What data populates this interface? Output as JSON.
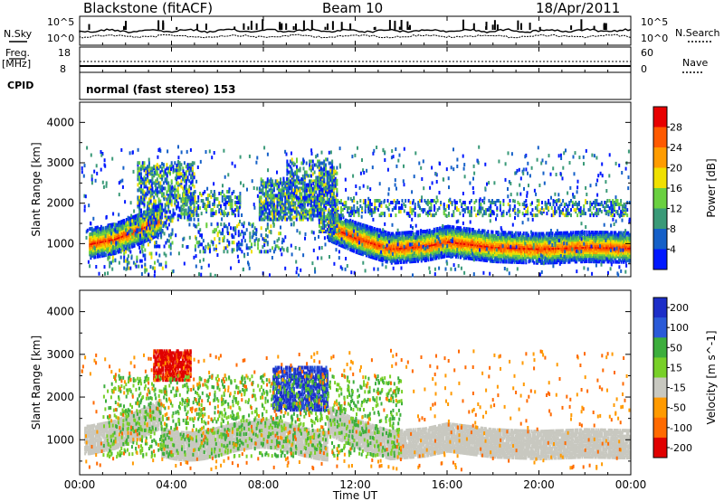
{
  "header": {
    "station": "Blackstone (fitACF)",
    "beam": "Beam 10",
    "date": "18/Apr/2011"
  },
  "strips": {
    "nsky_label": "N.Sky",
    "nsky_top": "10^5",
    "nsky_bottom": "10^0",
    "nsearch_label": "N.Search",
    "nsearch_top": "10^5",
    "nsearch_bottom": "10^0",
    "freq_label": "Freq.",
    "freq_unit": "[MHz]",
    "freq_top": "18",
    "freq_bottom": "8",
    "nave_label": "Nave",
    "nave_top": "60",
    "nave_bottom": "0",
    "cpid_label": "CPID",
    "cpid_value": "normal (fast stereo) 153"
  },
  "chart_data": [
    {
      "type": "heatmap",
      "name": "power",
      "ylabel": "Slant Range [km]",
      "yticks": [
        1000,
        2000,
        3000,
        4000
      ],
      "ylim": [
        180,
        4500
      ],
      "colorbar_label": "Power [dB]",
      "colorbar_ticks": [
        "4",
        "8",
        "12",
        "16",
        "20",
        "24",
        "28"
      ],
      "colors": [
        "#0018ff",
        "#1560c8",
        "#3a9a78",
        "#6ad040",
        "#f0e000",
        "#ff9c00",
        "#ff5a00",
        "#e80000"
      ],
      "bands": [
        {
          "x": [
            0.4,
            1.5,
            2.5,
            3.5
          ],
          "y": [
            1000,
            1120,
            1340,
            1600
          ]
        },
        {
          "x": [
            10.8,
            12,
            13.5,
            15,
            16,
            18,
            20,
            22,
            24
          ],
          "y": [
            1450,
            1150,
            880,
            940,
            1060,
            920,
            880,
            920,
            900
          ]
        }
      ]
    },
    {
      "type": "heatmap",
      "name": "velocity",
      "ylabel": "Slant Range [km]",
      "yticks": [
        1000,
        2000,
        3000,
        4000
      ],
      "ylim": [
        180,
        4500
      ],
      "colorbar_label": "Velocity [m s^-1]",
      "colorbar_ticks": [
        "200",
        "100",
        "50",
        "15",
        "-15",
        "-50",
        "-100",
        "-200"
      ],
      "colors": [
        "#1c2ec8",
        "#2a5ad8",
        "#3cae3c",
        "#78d028",
        "#c8c8c0",
        "#ff9a00",
        "#ff6a00",
        "#e00000"
      ]
    }
  ],
  "xaxis": {
    "label": "Time UT",
    "ticks": [
      "00:00",
      "04:00",
      "08:00",
      "12:00",
      "16:00",
      "20:00",
      "00:00"
    ],
    "xlim": [
      0,
      24
    ]
  }
}
